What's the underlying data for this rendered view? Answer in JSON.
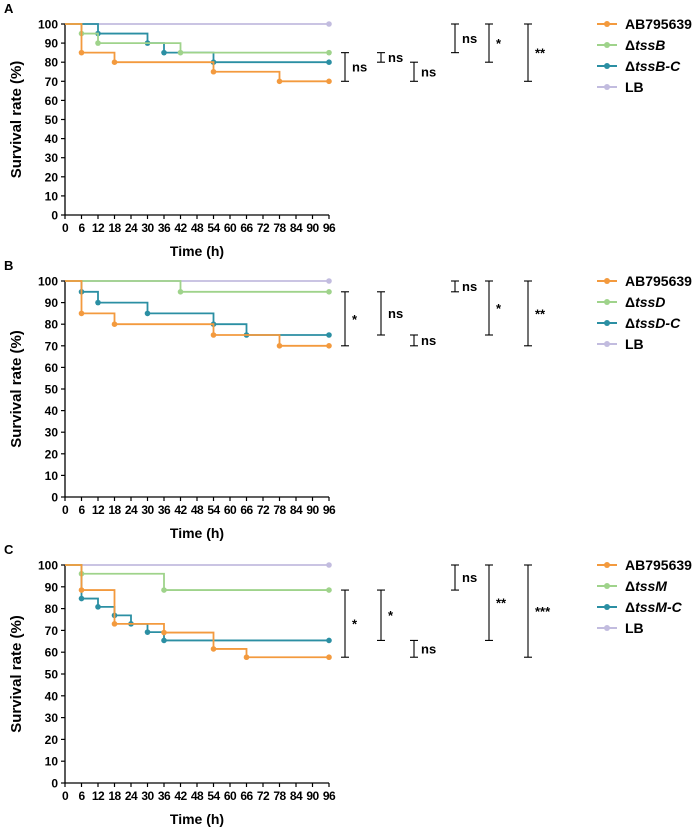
{
  "chart_data": [
    {
      "type": "line",
      "subtype": "kaplan-meier",
      "panel_label": "A",
      "title": "",
      "xlabel": "Time (h)",
      "ylabel": "Survival rate (%)",
      "xlim": [
        0,
        96
      ],
      "ylim": [
        0,
        100
      ],
      "x_ticks": [
        "0",
        "6",
        "12",
        "18",
        "24",
        "30",
        "36",
        "42",
        "48",
        "54",
        "60",
        "66",
        "72",
        "78",
        "84",
        "90",
        "96"
      ],
      "y_ticks": [
        "0",
        "10",
        "20",
        "30",
        "40",
        "50",
        "60",
        "70",
        "80",
        "90",
        "100"
      ],
      "legend_position": "right",
      "series": [
        {
          "name": "AB795639",
          "prefix": "",
          "italic": "",
          "suffix": "",
          "color": "#f39a3e",
          "steps": [
            [
              0,
              100
            ],
            [
              6,
              85
            ],
            [
              18,
              80
            ],
            [
              54,
              75
            ],
            [
              78,
              70
            ],
            [
              96,
              70
            ]
          ],
          "markers": [
            6,
            18,
            54,
            78,
            96
          ]
        },
        {
          "name": "ΔtssB",
          "prefix": "Δ",
          "italic": "tssB",
          "suffix": "",
          "color": "#9fd38b",
          "steps": [
            [
              0,
              100
            ],
            [
              6,
              95
            ],
            [
              12,
              90
            ],
            [
              42,
              85
            ],
            [
              96,
              85
            ]
          ],
          "markers": [
            6,
            12,
            42,
            96
          ]
        },
        {
          "name": "ΔtssB-C",
          "prefix": "Δ",
          "italic": "tssB",
          "suffix": "-C",
          "color": "#2b8fa3",
          "steps": [
            [
              0,
              100
            ],
            [
              12,
              95
            ],
            [
              30,
              90
            ],
            [
              36,
              85
            ],
            [
              54,
              80
            ],
            [
              96,
              80
            ]
          ],
          "markers": [
            12,
            30,
            36,
            54,
            96
          ]
        },
        {
          "name": "LB",
          "prefix": "",
          "italic": "",
          "suffix": "",
          "color": "#c2bcdf",
          "steps": [
            [
              0,
              100
            ],
            [
              96,
              100
            ]
          ],
          "markers": [
            96
          ]
        }
      ],
      "significance": [
        {
          "label": "ns",
          "y_top": 85,
          "y_bottom": 70,
          "slot": 0
        },
        {
          "label": "ns",
          "y_top": 85,
          "y_bottom": 80,
          "slot": 1
        },
        {
          "label": "ns",
          "y_top": 80,
          "y_bottom": 70,
          "slot": 2
        },
        {
          "label": "ns",
          "y_top": 100,
          "y_bottom": 85,
          "slot": 3
        },
        {
          "label": "*",
          "y_top": 100,
          "y_bottom": 80,
          "slot": 4
        },
        {
          "label": "**",
          "y_top": 100,
          "y_bottom": 70,
          "slot": 5
        }
      ]
    },
    {
      "type": "line",
      "subtype": "kaplan-meier",
      "panel_label": "B",
      "title": "",
      "xlabel": "Time (h)",
      "ylabel": "Survival rate (%)",
      "xlim": [
        0,
        96
      ],
      "ylim": [
        0,
        100
      ],
      "x_ticks": [
        "0",
        "6",
        "12",
        "18",
        "24",
        "30",
        "36",
        "42",
        "48",
        "54",
        "60",
        "66",
        "72",
        "78",
        "84",
        "90",
        "96"
      ],
      "y_ticks": [
        "0",
        "10",
        "20",
        "30",
        "40",
        "50",
        "60",
        "70",
        "80",
        "90",
        "100"
      ],
      "legend_position": "right",
      "series": [
        {
          "name": "AB795639",
          "prefix": "",
          "italic": "",
          "suffix": "",
          "color": "#f39a3e",
          "steps": [
            [
              0,
              100
            ],
            [
              6,
              85
            ],
            [
              18,
              80
            ],
            [
              54,
              75
            ],
            [
              78,
              70
            ],
            [
              96,
              70
            ]
          ],
          "markers": [
            6,
            18,
            54,
            78,
            96
          ]
        },
        {
          "name": "ΔtssD",
          "prefix": "Δ",
          "italic": "tssD",
          "suffix": "",
          "color": "#9fd38b",
          "steps": [
            [
              0,
              100
            ],
            [
              42,
              95
            ],
            [
              96,
              95
            ]
          ],
          "markers": [
            42,
            96
          ]
        },
        {
          "name": "ΔtssD-C",
          "prefix": "Δ",
          "italic": "tssD",
          "suffix": "-C",
          "color": "#2b8fa3",
          "steps": [
            [
              0,
              100
            ],
            [
              6,
              95
            ],
            [
              12,
              90
            ],
            [
              30,
              85
            ],
            [
              54,
              80
            ],
            [
              66,
              75
            ],
            [
              96,
              75
            ]
          ],
          "markers": [
            6,
            12,
            30,
            54,
            66,
            96
          ]
        },
        {
          "name": "LB",
          "prefix": "",
          "italic": "",
          "suffix": "",
          "color": "#c2bcdf",
          "steps": [
            [
              0,
              100
            ],
            [
              96,
              100
            ]
          ],
          "markers": [
            96
          ]
        }
      ],
      "significance": [
        {
          "label": "*",
          "y_top": 95,
          "y_bottom": 70,
          "slot": 0
        },
        {
          "label": "ns",
          "y_top": 95,
          "y_bottom": 75,
          "slot": 1
        },
        {
          "label": "ns",
          "y_top": 75,
          "y_bottom": 70,
          "slot": 2
        },
        {
          "label": "ns",
          "y_top": 100,
          "y_bottom": 95,
          "slot": 3
        },
        {
          "label": "*",
          "y_top": 100,
          "y_bottom": 75,
          "slot": 4
        },
        {
          "label": "**",
          "y_top": 100,
          "y_bottom": 70,
          "slot": 5
        }
      ]
    },
    {
      "type": "line",
      "subtype": "kaplan-meier",
      "panel_label": "C",
      "title": "",
      "xlabel": "Time (h)",
      "ylabel": "Survival rate (%)",
      "xlim": [
        0,
        96
      ],
      "ylim": [
        0,
        100
      ],
      "x_ticks": [
        "0",
        "6",
        "12",
        "18",
        "24",
        "30",
        "36",
        "42",
        "48",
        "54",
        "60",
        "66",
        "72",
        "78",
        "84",
        "90",
        "96"
      ],
      "y_ticks": [
        "0",
        "10",
        "20",
        "30",
        "40",
        "50",
        "60",
        "70",
        "80",
        "90",
        "100"
      ],
      "legend_position": "right",
      "series": [
        {
          "name": "AB795639",
          "prefix": "",
          "italic": "",
          "suffix": "",
          "color": "#f39a3e",
          "steps": [
            [
              0,
              100
            ],
            [
              6,
              88.5
            ],
            [
              18,
              73
            ],
            [
              36,
              69
            ],
            [
              54,
              61.5
            ],
            [
              66,
              57.7
            ],
            [
              96,
              57.7
            ]
          ],
          "markers": [
            6,
            18,
            36,
            54,
            66,
            96
          ]
        },
        {
          "name": "ΔtssM",
          "prefix": "Δ",
          "italic": "tssM",
          "suffix": "",
          "color": "#9fd38b",
          "steps": [
            [
              0,
              100
            ],
            [
              6,
              96
            ],
            [
              36,
              88.5
            ],
            [
              96,
              88.5
            ]
          ],
          "markers": [
            6,
            36,
            96
          ]
        },
        {
          "name": "ΔtssM-C",
          "prefix": "Δ",
          "italic": "tssM",
          "suffix": "-C",
          "color": "#2b8fa3",
          "steps": [
            [
              0,
              100
            ],
            [
              6,
              84.6
            ],
            [
              12,
              80.8
            ],
            [
              18,
              76.9
            ],
            [
              24,
              73
            ],
            [
              30,
              69.2
            ],
            [
              36,
              65.4
            ],
            [
              96,
              65.4
            ]
          ],
          "markers": [
            6,
            12,
            18,
            24,
            30,
            36,
            96
          ]
        },
        {
          "name": "LB",
          "prefix": "",
          "italic": "",
          "suffix": "",
          "color": "#c2bcdf",
          "steps": [
            [
              0,
              100
            ],
            [
              96,
              100
            ]
          ],
          "markers": [
            96
          ]
        }
      ],
      "significance": [
        {
          "label": "*",
          "y_top": 88.5,
          "y_bottom": 57.7,
          "slot": 0
        },
        {
          "label": "*",
          "y_top": 88.5,
          "y_bottom": 65.4,
          "slot": 1
        },
        {
          "label": "ns",
          "y_top": 65.4,
          "y_bottom": 57.7,
          "slot": 2
        },
        {
          "label": "ns",
          "y_top": 100,
          "y_bottom": 88.5,
          "slot": 3
        },
        {
          "label": "**",
          "y_top": 100,
          "y_bottom": 65.4,
          "slot": 4
        },
        {
          "label": "***",
          "y_top": 100,
          "y_bottom": 57.7,
          "slot": 5
        }
      ]
    }
  ]
}
